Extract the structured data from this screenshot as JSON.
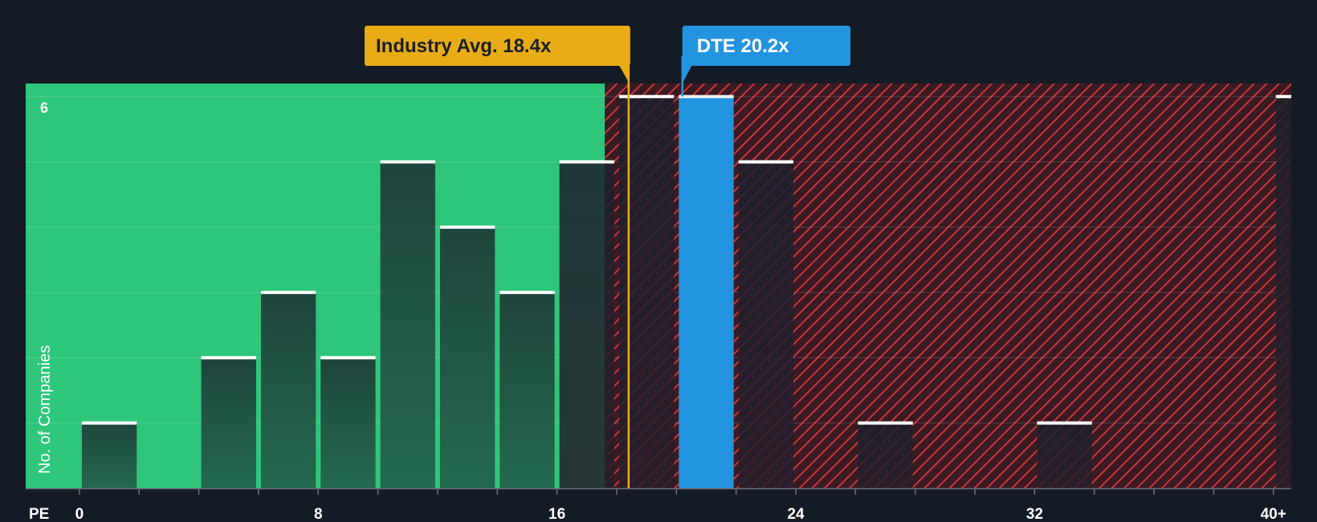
{
  "chart_data": {
    "type": "bar",
    "title": "",
    "xlabel": "PE",
    "ylabel": "No. of Companies",
    "x_range": [
      -1.8,
      40.6
    ],
    "ylim": [
      0,
      6.2
    ],
    "x_ticks": [
      0,
      8,
      16,
      24,
      32,
      40
    ],
    "x_tick_labels": [
      "0",
      "8",
      "16",
      "24",
      "32",
      "40+"
    ],
    "y_tick_labels": [
      {
        "value": 6,
        "label": "6"
      }
    ],
    "gridlines": [
      1,
      2,
      3,
      4,
      5,
      6
    ],
    "bin_width": 2,
    "bins": [
      {
        "x0": 0,
        "x1": 2,
        "count": 1
      },
      {
        "x0": 2,
        "x1": 4,
        "count": 0
      },
      {
        "x0": 4,
        "x1": 6,
        "count": 2
      },
      {
        "x0": 6,
        "x1": 8,
        "count": 3
      },
      {
        "x0": 8,
        "x1": 10,
        "count": 2
      },
      {
        "x0": 10,
        "x1": 12,
        "count": 5
      },
      {
        "x0": 12,
        "x1": 14,
        "count": 4
      },
      {
        "x0": 14,
        "x1": 16,
        "count": 3
      },
      {
        "x0": 16,
        "x1": 18,
        "count": 5
      },
      {
        "x0": 18,
        "x1": 20,
        "count": 6
      },
      {
        "x0": 20,
        "x1": 22,
        "count": 6,
        "highlight": true
      },
      {
        "x0": 22,
        "x1": 24,
        "count": 5
      },
      {
        "x0": 24,
        "x1": 26,
        "count": 0
      },
      {
        "x0": 26,
        "x1": 28,
        "count": 1
      },
      {
        "x0": 28,
        "x1": 30,
        "count": 0
      },
      {
        "x0": 30,
        "x1": 32,
        "count": 0
      },
      {
        "x0": 32,
        "x1": 34,
        "count": 1
      },
      {
        "x0": 34,
        "x1": 36,
        "count": 0
      },
      {
        "x0": 36,
        "x1": 38,
        "count": 0
      },
      {
        "x0": 38,
        "x1": 40,
        "count": 0
      },
      {
        "x0": 40,
        "x1": 42,
        "count": 6
      }
    ],
    "fair_zone_end": 17.6,
    "industry_avg": {
      "label": "Industry Avg. 18.4x",
      "value": 18.4
    },
    "company": {
      "label": "DTE 20.2x",
      "value": 20.2
    },
    "colors": {
      "background": "#151b24",
      "fair_zone": "#2ec67b",
      "expensive_zone": "#3a1a22",
      "hatch": "#d93a40",
      "bar": "#1f4a40",
      "bar_top": "#ffffff",
      "highlight": "#2394e0",
      "industry": "#e8ac16",
      "company_callout": "#2394e0"
    }
  }
}
